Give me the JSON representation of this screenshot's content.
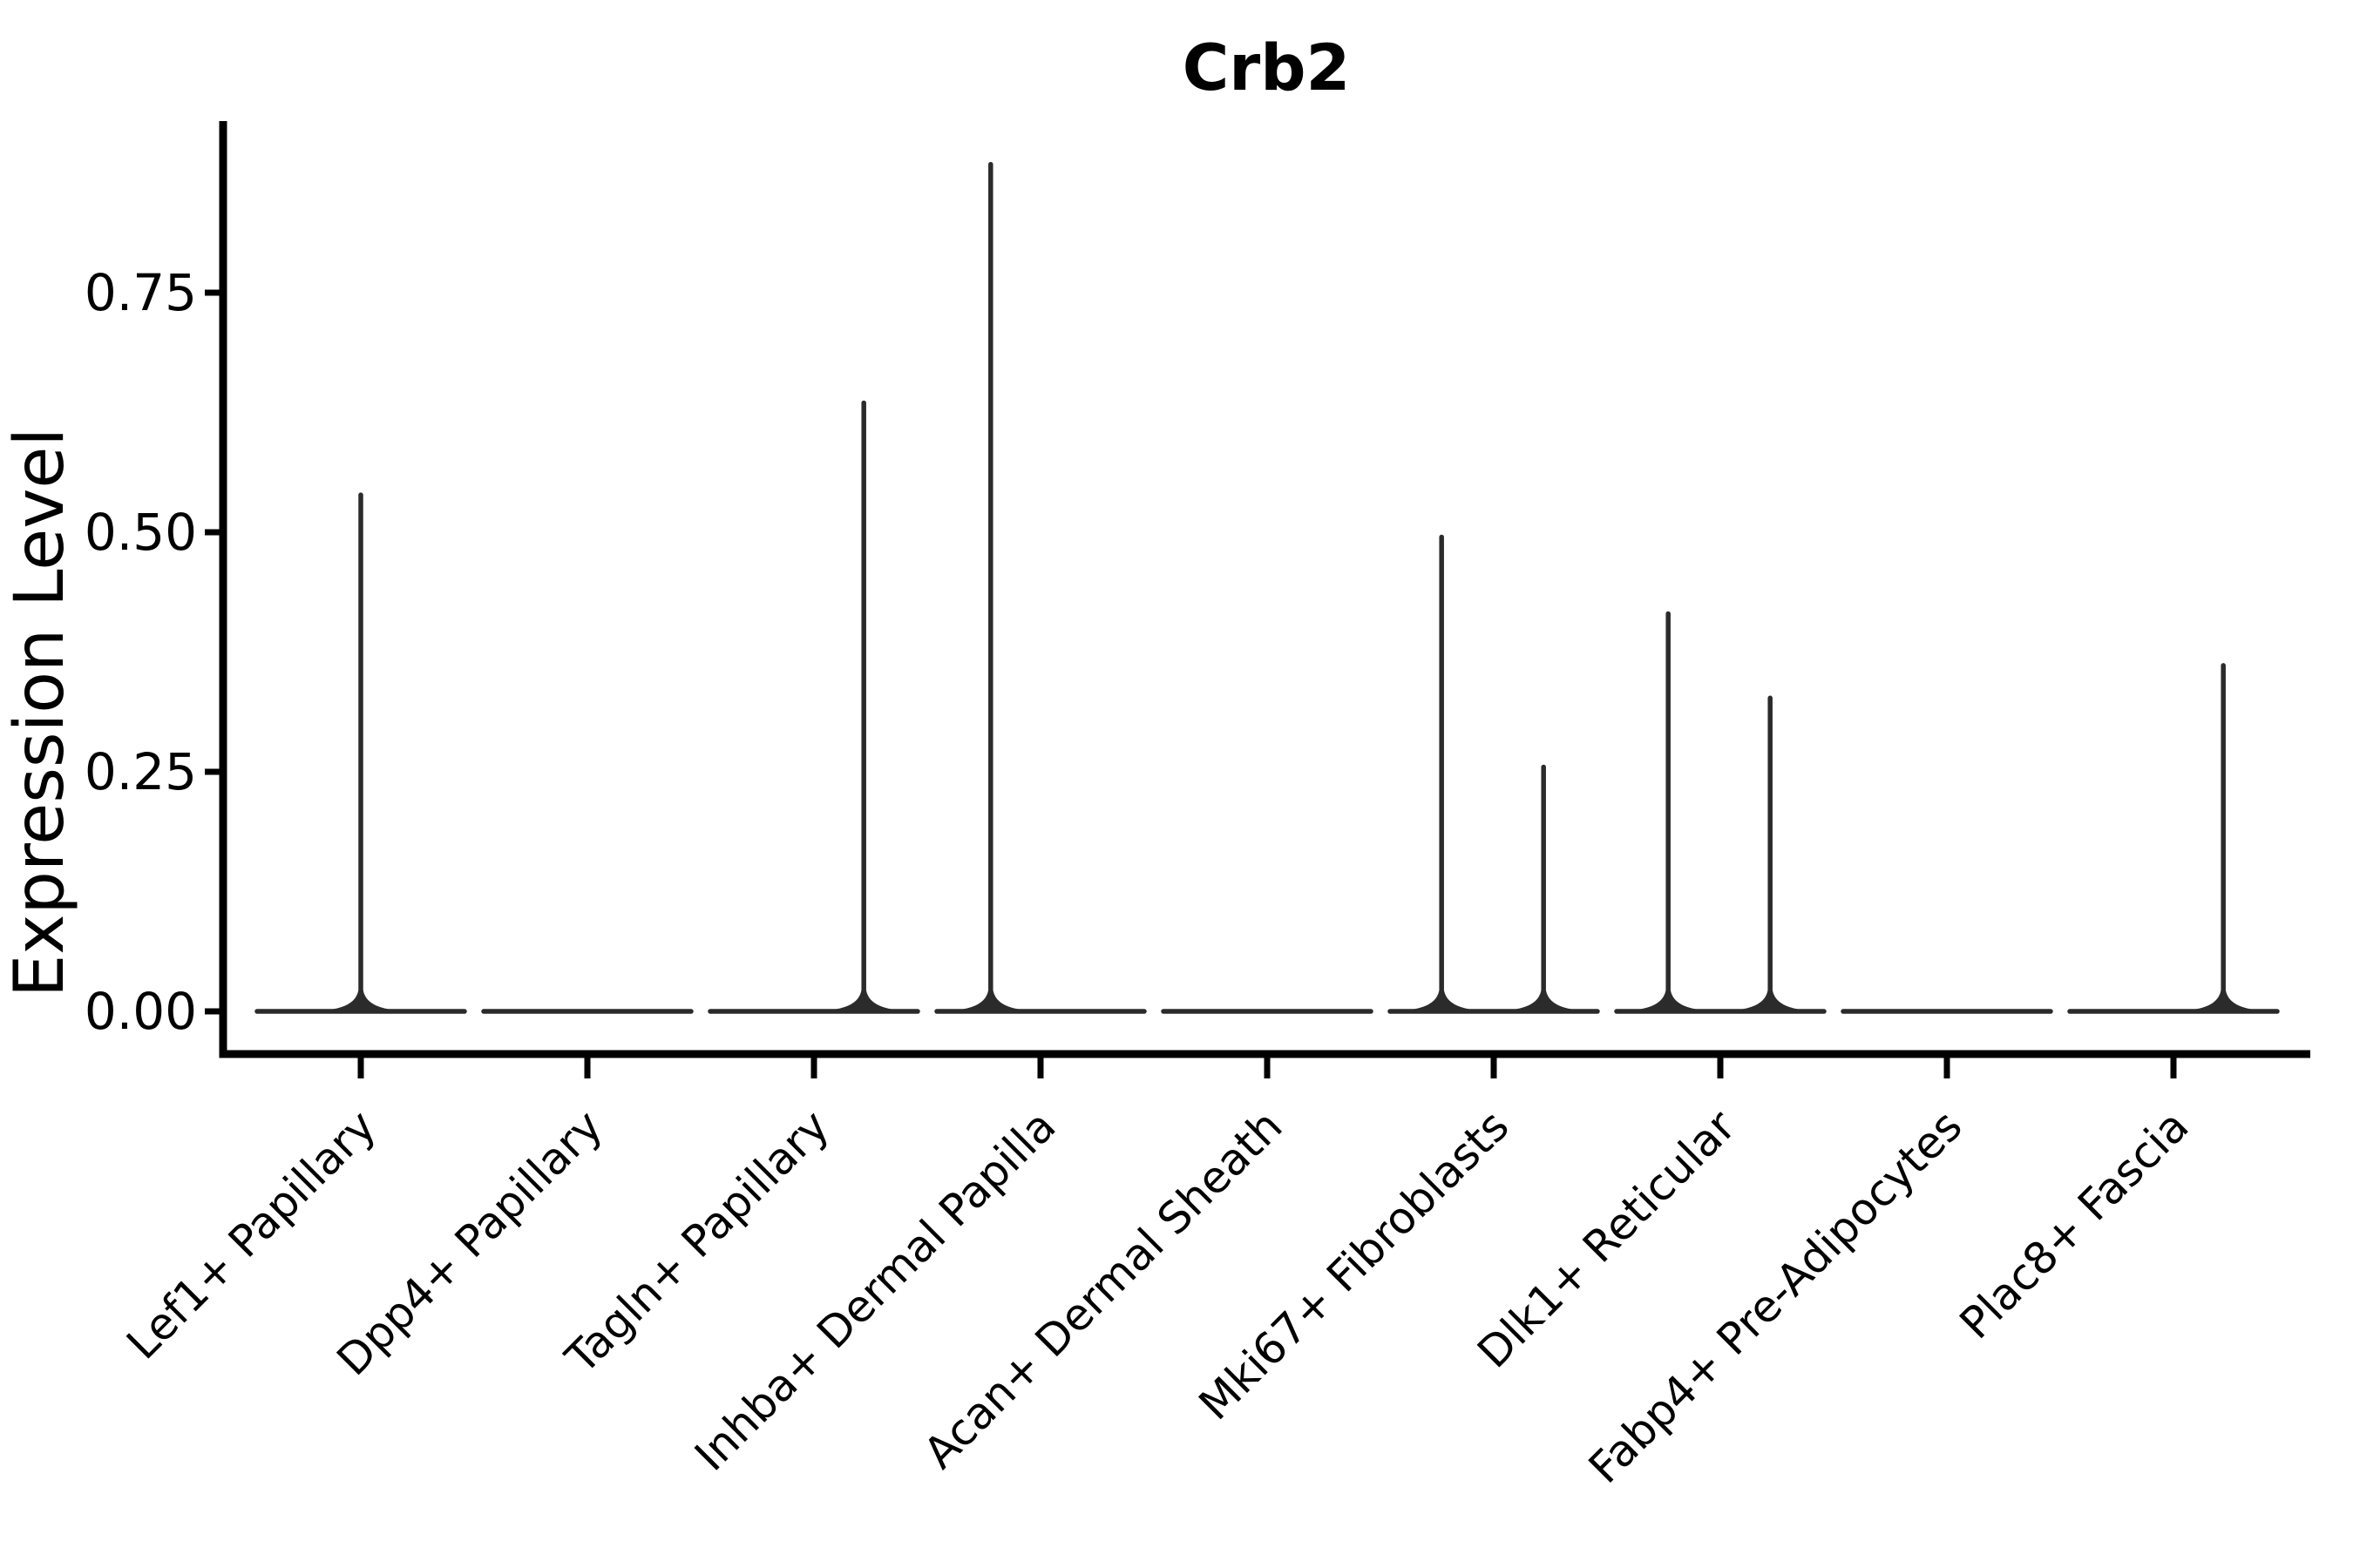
{
  "figure": {
    "title": "Crb2",
    "ylabel": "Expression Level"
  },
  "chart_data": {
    "type": "violin",
    "title": "Crb2",
    "xlabel": "",
    "ylabel": "Expression Level",
    "categories": [
      "Lef1+ Papillary",
      "Dpp4+ Papillary",
      "Tagln+ Papillary",
      "Inhba+ Dermal Papilla",
      "Acan+ Dermal Sheath",
      "Mki67+ Fibroblasts",
      "Dlk1+ Reticular",
      "Fabp4+ Pre-Adipocytes",
      "Plac8+ Fascia"
    ],
    "series": [
      {
        "name": "Lef1+ Papillary",
        "baseline_value": 0.0,
        "spikes": [
          {
            "x_offset_frac": 0.0,
            "peak": 0.539
          }
        ]
      },
      {
        "name": "Dpp4+ Papillary",
        "baseline_value": 0.0,
        "spikes": []
      },
      {
        "name": "Tagln+ Papillary",
        "baseline_value": 0.0,
        "spikes": [
          {
            "x_offset_frac": 0.22,
            "peak": 0.635
          }
        ]
      },
      {
        "name": "Inhba+ Dermal Papilla",
        "baseline_value": 0.0,
        "spikes": [
          {
            "x_offset_frac": -0.22,
            "peak": 0.884
          }
        ]
      },
      {
        "name": "Acan+ Dermal Sheath",
        "baseline_value": 0.0,
        "spikes": []
      },
      {
        "name": "Mki67+ Fibroblasts",
        "baseline_value": 0.0,
        "spikes": [
          {
            "x_offset_frac": -0.23,
            "peak": 0.495
          },
          {
            "x_offset_frac": 0.22,
            "peak": 0.255
          }
        ]
      },
      {
        "name": "Dlk1+ Reticular",
        "baseline_value": 0.0,
        "spikes": [
          {
            "x_offset_frac": -0.23,
            "peak": 0.415
          },
          {
            "x_offset_frac": 0.22,
            "peak": 0.327
          }
        ]
      },
      {
        "name": "Fabp4+ Pre-Adipocytes",
        "baseline_value": 0.0,
        "spikes": []
      },
      {
        "name": "Plac8+ Fascia",
        "baseline_value": 0.0,
        "spikes": [
          {
            "x_offset_frac": 0.22,
            "peak": 0.361
          }
        ]
      }
    ],
    "y_ticks": [
      0.0,
      0.25,
      0.5,
      0.75
    ],
    "y_tick_labels": [
      "0.00",
      "0.25",
      "0.50",
      "0.75"
    ],
    "ylim": [
      -0.045,
      0.93
    ],
    "violin_width_frac": 0.9,
    "grid": false,
    "legend": false,
    "colors": {
      "violin_line": "#2b2b2b",
      "axis": "#000000",
      "text": "#000000",
      "background": "#ffffff"
    }
  }
}
